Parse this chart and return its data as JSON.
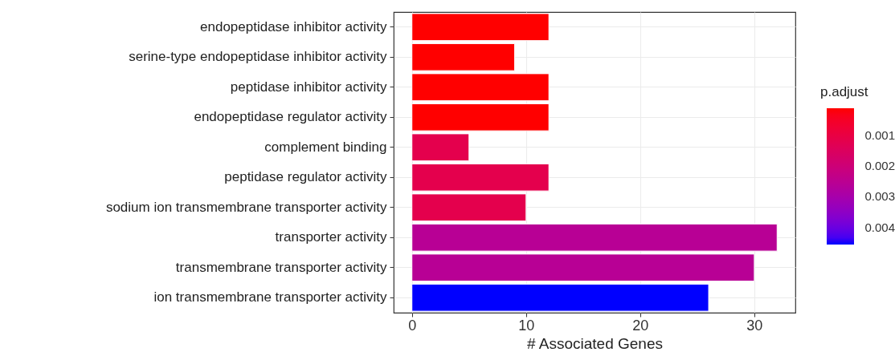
{
  "chart_data": {
    "type": "bar",
    "orientation": "horizontal",
    "xlabel": "# Associated Genes",
    "clabel": "p.adjust",
    "categories": [
      "endopeptidase inhibitor activity",
      "serine-type endopeptidase inhibitor activity",
      "peptidase inhibitor activity",
      "endopeptidase regulator activity",
      "complement binding",
      "peptidase regulator activity",
      "sodium ion transmembrane transporter activity",
      "transporter activity",
      "transmembrane transporter activity",
      "ion transmembrane transporter activity"
    ],
    "values": [
      12,
      9,
      12,
      12,
      5,
      12,
      10,
      32,
      30,
      26
    ],
    "cvalues": [
      0.00014,
      0.00014,
      0.00014,
      0.00014,
      0.0012,
      0.0012,
      0.0012,
      0.0026,
      0.0026,
      0.00457
    ],
    "clim": [
      0.00014,
      0.00457
    ],
    "cticks": [
      0.001,
      0.002,
      0.003,
      0.004
    ],
    "xlim": [
      -1.6,
      33.6
    ],
    "xticks": [
      0,
      10,
      20,
      30
    ],
    "grid": true
  }
}
